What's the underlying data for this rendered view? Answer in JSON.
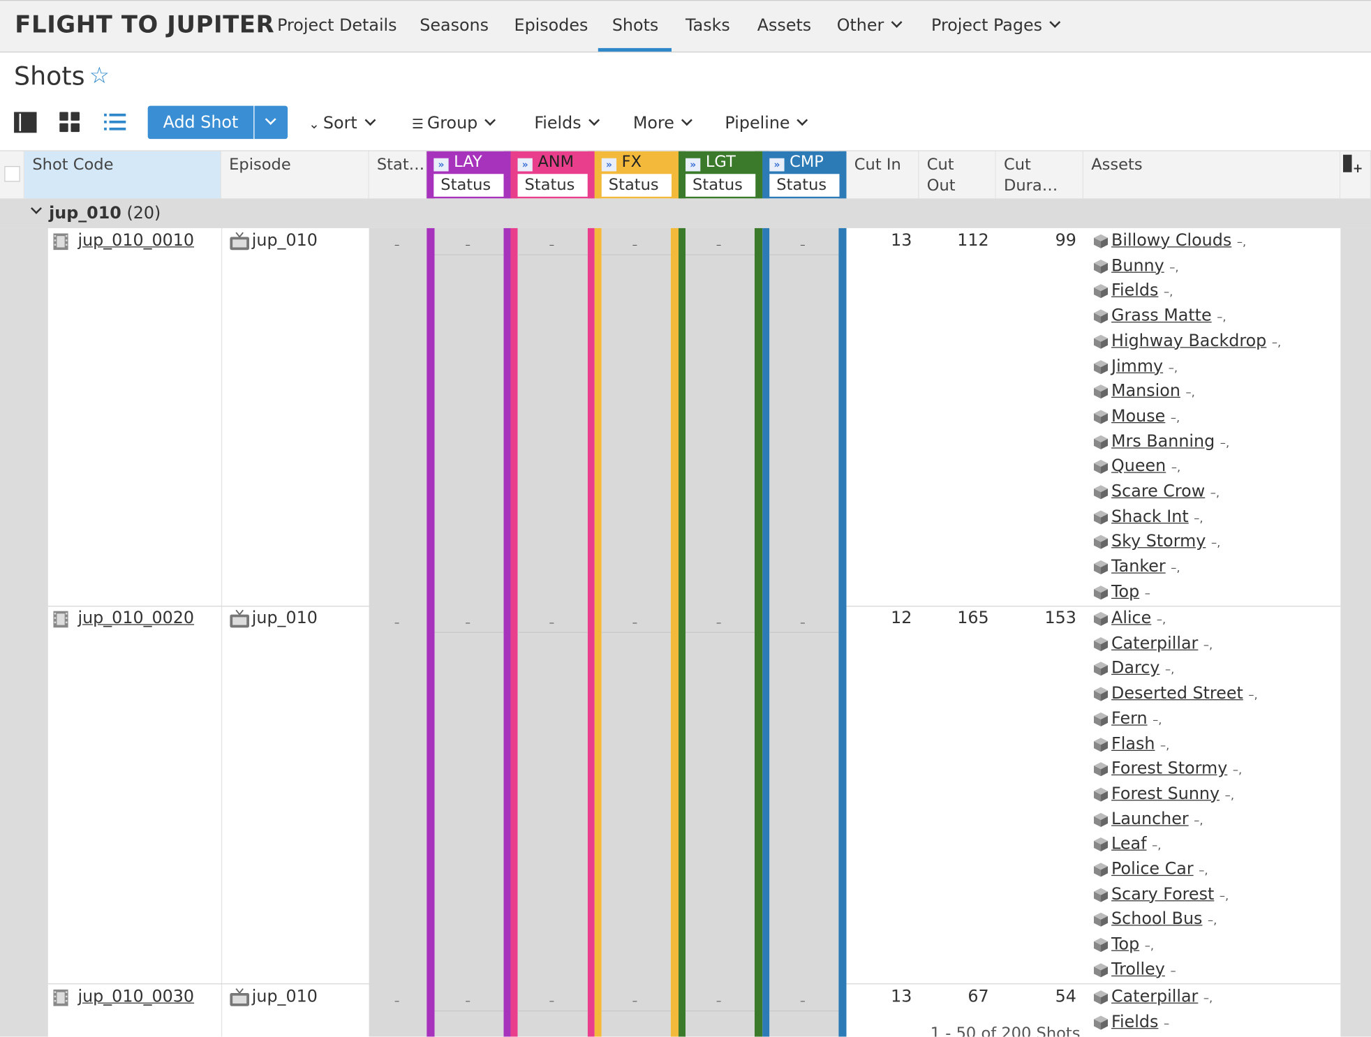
{
  "brand": "FLIGHT TO JUPITER",
  "nav": [
    {
      "label": "Project Details"
    },
    {
      "label": "Seasons"
    },
    {
      "label": "Episodes"
    },
    {
      "label": "Shots"
    },
    {
      "label": "Tasks"
    },
    {
      "label": "Assets"
    },
    {
      "label": "Other"
    },
    {
      "label": "Project Pages"
    }
  ],
  "nav_active": "Shots",
  "page_title": "Shots",
  "toolbar": {
    "add_label": "Add Shot",
    "sort": "Sort",
    "group": "Group",
    "fields": "Fields",
    "more": "More",
    "pipeline": "Pipeline"
  },
  "columns": {
    "shot_code": "Shot Code",
    "episode": "Episode",
    "status": "Stat…",
    "cut_in": "Cut In",
    "cut_out": "Cut Out",
    "cut_duration": "Cut Dura…",
    "assets": "Assets"
  },
  "pipeline_steps": [
    {
      "name": "LAY",
      "sub": "Status",
      "color": "#a733bd"
    },
    {
      "name": "ANM",
      "sub": "Status",
      "color": "#e83e8c"
    },
    {
      "name": "FX",
      "sub": "Status",
      "color": "#f2b93b"
    },
    {
      "name": "LGT",
      "sub": "Status",
      "color": "#3a7a2a"
    },
    {
      "name": "CMP",
      "sub": "Status",
      "color": "#2c7bb6"
    }
  ],
  "group": {
    "name": "jup_010",
    "count": "(20)"
  },
  "rows": [
    {
      "code": "jup_010_0010",
      "episode": "jup_010",
      "cut_in": "13",
      "cut_out": "112",
      "cut_duration": "99",
      "assets": [
        "Billowy Clouds",
        "Bunny",
        "Fields",
        "Grass Matte",
        "Highway Backdrop",
        "Jimmy",
        "Mansion",
        "Mouse",
        "Mrs Banning",
        "Queen",
        "Scare Crow",
        "Shack Int",
        "Sky Stormy",
        "Tanker",
        "Top"
      ]
    },
    {
      "code": "jup_010_0020",
      "episode": "jup_010",
      "cut_in": "12",
      "cut_out": "165",
      "cut_duration": "153",
      "assets": [
        "Alice",
        "Caterpillar",
        "Darcy",
        "Deserted Street",
        "Fern",
        "Flash",
        "Forest Stormy",
        "Forest Sunny",
        "Launcher",
        "Leaf",
        "Police Car",
        "Scary Forest",
        "School Bus",
        "Top",
        "Trolley"
      ]
    },
    {
      "code": "jup_010_0030",
      "episode": "jup_010",
      "cut_in": "13",
      "cut_out": "67",
      "cut_duration": "54",
      "assets": [
        "Caterpillar",
        "Fields"
      ]
    }
  ],
  "empty_mark": "–",
  "asset_suffix": "–,",
  "asset_suffix_last": "–",
  "footer": "1 - 50 of 200 Shots"
}
